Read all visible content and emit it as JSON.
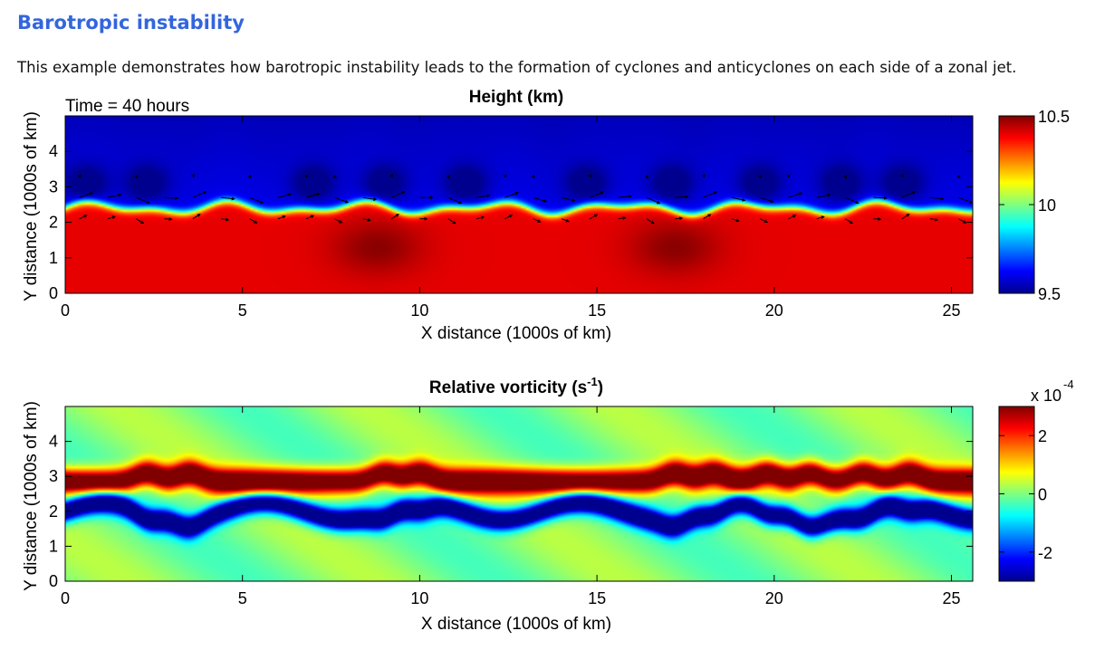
{
  "page": {
    "heading": "Barotropic instability",
    "intro": "This example demonstrates how barotropic instability leads to the formation of cyclones and anticyclones on each side of a zonal jet."
  },
  "colors": {
    "heading": "#3366dd",
    "colormap": [
      "#00008f",
      "#0000ff",
      "#00ffff",
      "#ffff00",
      "#ff0000",
      "#800000"
    ]
  },
  "chart_data": [
    {
      "type": "heatmap",
      "title": "Height (km)",
      "annotation": "Time = 40 hours",
      "xlabel": "X distance (1000s of km)",
      "ylabel": "Y distance (1000s of km)",
      "xlim": [
        0,
        25.6
      ],
      "ylim": [
        0,
        5
      ],
      "xticks": [
        "0",
        "5",
        "10",
        "15",
        "20",
        "25"
      ],
      "yticks": [
        "0",
        "1",
        "2",
        "3",
        "4"
      ],
      "colorbar": {
        "min": 9.5,
        "max": 10.5,
        "ticks": [
          "9.5",
          "10",
          "10.5"
        ],
        "multiplier": ""
      },
      "overlay": "velocity-vectors",
      "field": {
        "north_value": 9.6,
        "south_value": 10.4,
        "jet_y": 2.4,
        "low_centers_x": [
          0.6,
          2.3,
          7.0,
          9.0,
          11.3,
          14.7,
          17.1,
          19.6,
          21.9,
          23.6
        ],
        "low_centers_y": 3.1,
        "high_centers": [
          [
            8.8,
            1.3
          ],
          [
            17.2,
            1.3
          ]
        ]
      }
    },
    {
      "type": "heatmap",
      "title": "Relative vorticity (s",
      "title_superscript": "-1",
      "title_suffix": ")",
      "xlabel": "X distance (1000s of km)",
      "ylabel": "Y distance (1000s of km)",
      "xlim": [
        0,
        25.6
      ],
      "ylim": [
        0,
        5
      ],
      "xticks": [
        "0",
        "5",
        "10",
        "15",
        "20",
        "25"
      ],
      "yticks": [
        "0",
        "1",
        "2",
        "3",
        "4"
      ],
      "colorbar": {
        "min": -3,
        "max": 3,
        "ticks": [
          "-2",
          "0",
          "2"
        ],
        "multiplier": "x 10",
        "multiplier_exp": "-4"
      },
      "field": {
        "background_value": 0,
        "positive_band": {
          "y": 2.85,
          "width": 0.35,
          "value": 3
        },
        "negative_band": {
          "y": 2.0,
          "width": 0.3,
          "value": -3
        },
        "wave_crests_x": [
          2.3,
          3.5,
          9.0,
          10.0,
          17.2,
          18.3,
          19.8,
          21.0,
          22.5,
          23.8
        ]
      }
    }
  ]
}
